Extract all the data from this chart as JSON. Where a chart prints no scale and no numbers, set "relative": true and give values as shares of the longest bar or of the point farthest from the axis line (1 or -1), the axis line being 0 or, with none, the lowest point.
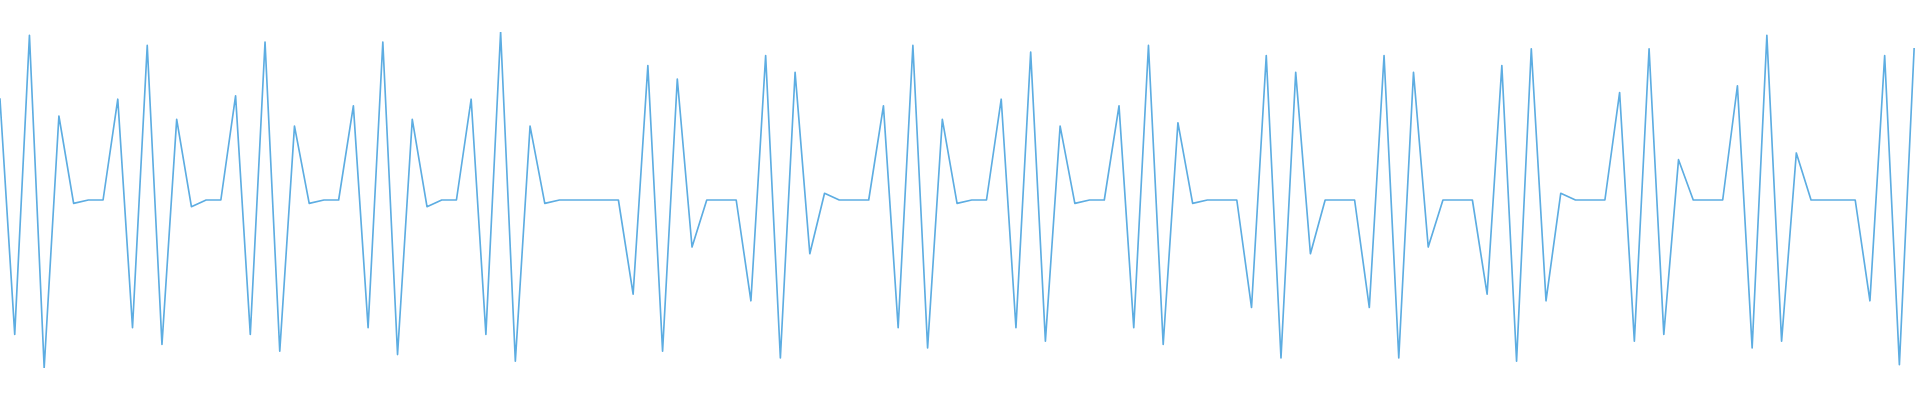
{
  "chart_data": {
    "type": "line",
    "relative": true,
    "categories": [
      null,
      null,
      null,
      null,
      null,
      null,
      null,
      null,
      null,
      null,
      null,
      null,
      null,
      null,
      null,
      null,
      null,
      null,
      null,
      null,
      null,
      null,
      null,
      null,
      null,
      null,
      null,
      null,
      null,
      null,
      null,
      null,
      null,
      null,
      null,
      null,
      null,
      null,
      null,
      null,
      null,
      null,
      null,
      null,
      null,
      null,
      null,
      null,
      null,
      null,
      null,
      null,
      null,
      null,
      null,
      null,
      null,
      null,
      null,
      null,
      null,
      null,
      null,
      null,
      null,
      null,
      null,
      null,
      null,
      null,
      null,
      null,
      null,
      null,
      null,
      null,
      null,
      null,
      null,
      null,
      null,
      null,
      null,
      null,
      null,
      null,
      null,
      null,
      null,
      null,
      null,
      null,
      null,
      null,
      null,
      null,
      null,
      null,
      null,
      null,
      null,
      null,
      null,
      null,
      null,
      null,
      null,
      null,
      null,
      null,
      null,
      null,
      null,
      null,
      null,
      null,
      null,
      null,
      null,
      null,
      null,
      null,
      null,
      null,
      null,
      null,
      null,
      null,
      null,
      null,
      null
    ],
    "series": [
      {
        "color": "#5dade2",
        "values": [
          0.8,
          0.1,
          0.99,
          0.0,
          0.75,
          0.49,
          0.5,
          0.5,
          0.8,
          0.12,
          0.96,
          0.07,
          0.74,
          0.48,
          0.5,
          0.5,
          0.81,
          0.1,
          0.97,
          0.05,
          0.72,
          0.49,
          0.5,
          0.5,
          0.78,
          0.12,
          0.97,
          0.04,
          0.74,
          0.48,
          0.5,
          0.5,
          0.8,
          0.1,
          1.0,
          0.02,
          0.72,
          0.49,
          0.5,
          0.5,
          0.5,
          0.5,
          0.5,
          0.22,
          0.9,
          0.05,
          0.86,
          0.36,
          0.5,
          0.5,
          0.5,
          0.2,
          0.93,
          0.03,
          0.88,
          0.34,
          0.52,
          0.5,
          0.5,
          0.5,
          0.78,
          0.12,
          0.96,
          0.06,
          0.74,
          0.49,
          0.5,
          0.5,
          0.8,
          0.12,
          0.94,
          0.08,
          0.72,
          0.49,
          0.5,
          0.5,
          0.78,
          0.12,
          0.96,
          0.07,
          0.73,
          0.49,
          0.5,
          0.5,
          0.5,
          0.18,
          0.93,
          0.03,
          0.88,
          0.34,
          0.5,
          0.5,
          0.5,
          0.18,
          0.93,
          0.03,
          0.88,
          0.36,
          0.5,
          0.5,
          0.5,
          0.22,
          0.9,
          0.02,
          0.95,
          0.2,
          0.52,
          0.5,
          0.5,
          0.5,
          0.82,
          0.08,
          0.95,
          0.1,
          0.62,
          0.5,
          0.5,
          0.5,
          0.84,
          0.06,
          0.99,
          0.08,
          0.64,
          0.5,
          0.5,
          0.5,
          0.5,
          0.2,
          0.93,
          0.01,
          0.95
        ]
      }
    ]
  }
}
